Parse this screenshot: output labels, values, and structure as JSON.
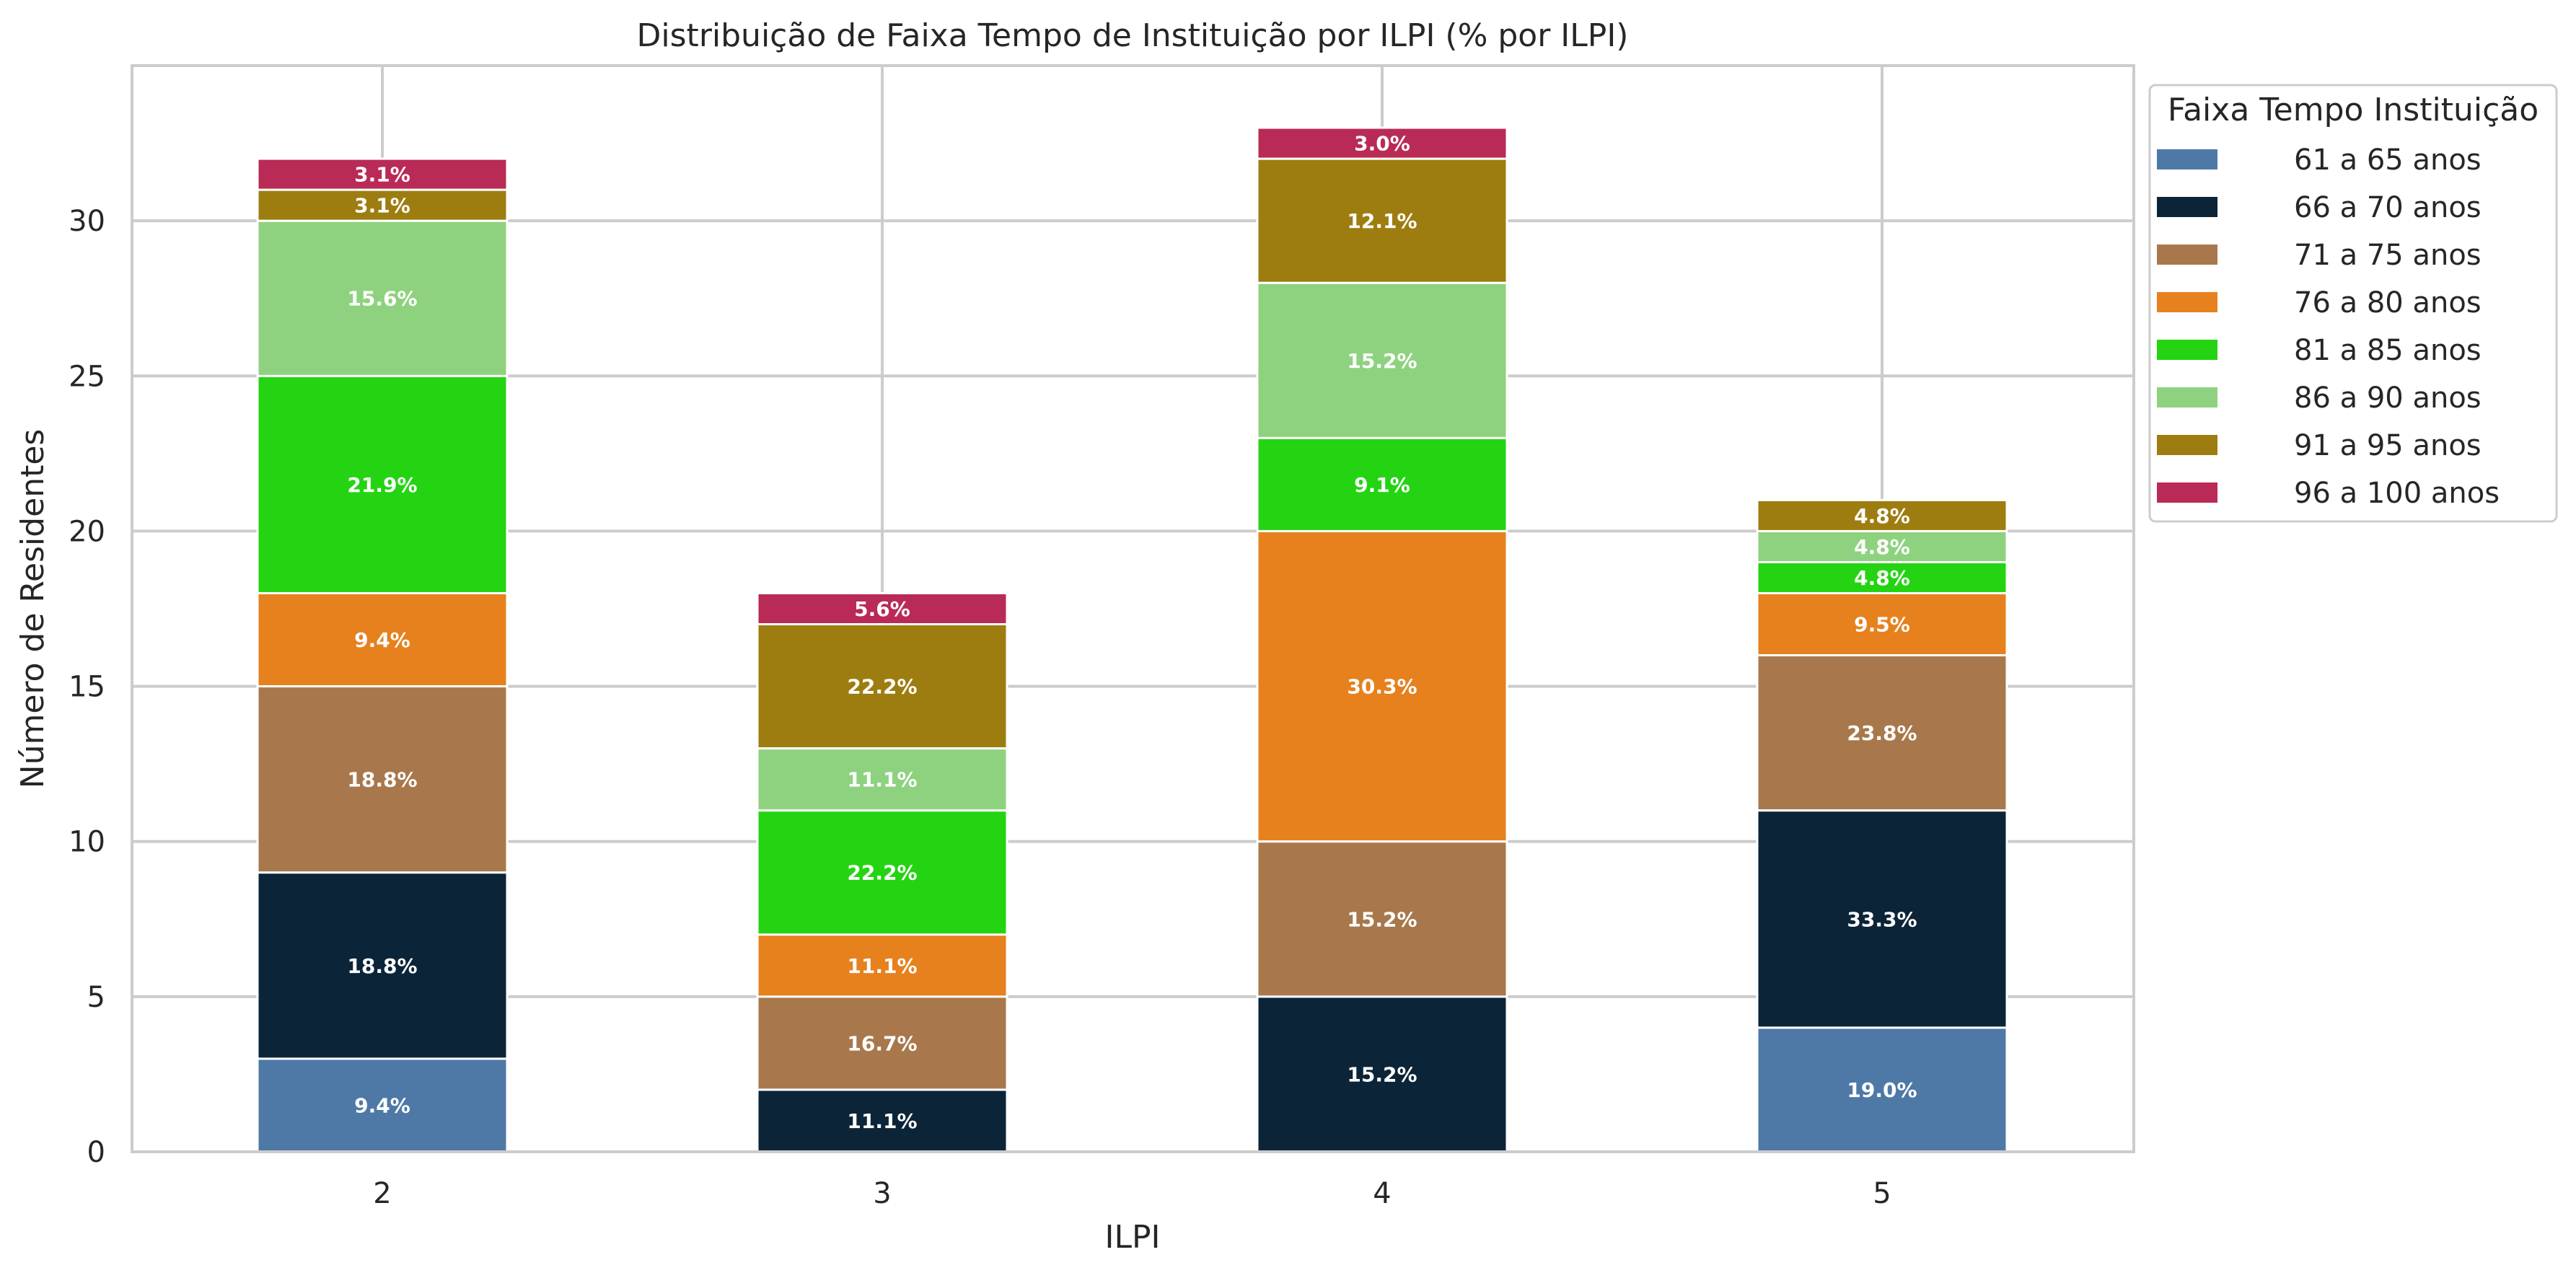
{
  "chart_data": {
    "type": "bar",
    "stacked": true,
    "title": "Distribuição de Faixa Tempo de Instituição por ILPI (% por ILPI)",
    "xlabel": "ILPI",
    "ylabel": "Número de Residentes",
    "categories": [
      "2",
      "3",
      "4",
      "5"
    ],
    "ylim": [
      0,
      35
    ],
    "yticks": [
      0,
      5,
      10,
      15,
      20,
      25,
      30
    ],
    "grid": true,
    "legend": {
      "title": "Faixa Tempo Instituição",
      "placement": "outside upper right"
    },
    "series": [
      {
        "name": "61 a 65 anos",
        "color": "#4e79a7",
        "values": [
          3,
          0,
          0,
          4
        ],
        "labels": [
          "9.4%",
          "",
          "",
          "19.0%"
        ]
      },
      {
        "name": "66 a 70 anos",
        "color": "#0b2438",
        "values": [
          6,
          2,
          5,
          7
        ],
        "labels": [
          "18.8%",
          "11.1%",
          "15.2%",
          "33.3%"
        ]
      },
      {
        "name": "71 a 75 anos",
        "color": "#a8784c",
        "values": [
          6,
          3,
          5,
          5
        ],
        "labels": [
          "18.8%",
          "16.7%",
          "15.2%",
          "23.8%"
        ]
      },
      {
        "name": "76 a 80 anos",
        "color": "#e6811e",
        "values": [
          3,
          2,
          10,
          2
        ],
        "labels": [
          "9.4%",
          "11.1%",
          "30.3%",
          "9.5%"
        ]
      },
      {
        "name": "81 a 85 anos",
        "color": "#24d412",
        "values": [
          7,
          4,
          3,
          1
        ],
        "labels": [
          "21.9%",
          "22.2%",
          "9.1%",
          "4.8%"
        ]
      },
      {
        "name": "86 a 90 anos",
        "color": "#8ed27f",
        "values": [
          5,
          2,
          5,
          1
        ],
        "labels": [
          "15.6%",
          "11.1%",
          "15.2%",
          "4.8%"
        ]
      },
      {
        "name": "91 a 95 anos",
        "color": "#9e7d10",
        "values": [
          1,
          4,
          4,
          1
        ],
        "labels": [
          "3.1%",
          "22.2%",
          "12.1%",
          "4.8%"
        ]
      },
      {
        "name": "96 a 100 anos",
        "color": "#b92b56",
        "values": [
          1,
          1,
          1,
          0
        ],
        "labels": [
          "3.1%",
          "5.6%",
          "3.0%",
          ""
        ]
      }
    ]
  }
}
